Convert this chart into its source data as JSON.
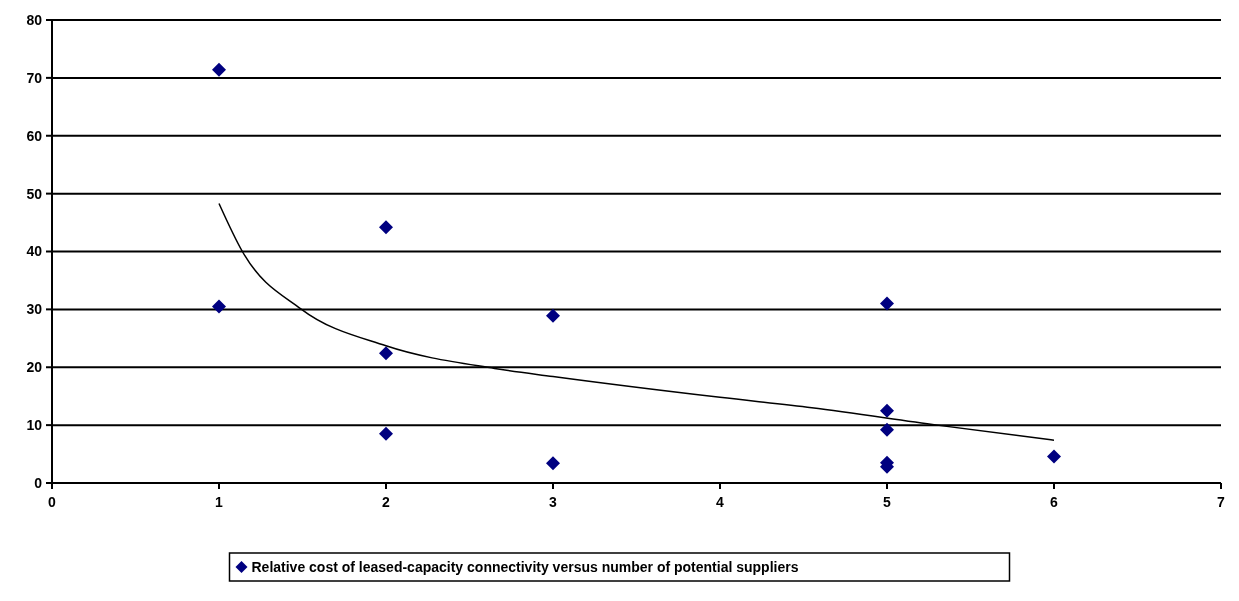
{
  "chart_data": {
    "type": "scatter",
    "xlim": [
      0,
      7
    ],
    "xticks": [
      0,
      1,
      2,
      3,
      4,
      5,
      6,
      7
    ],
    "ylim": [
      0,
      80
    ],
    "yticks": [
      0,
      10,
      20,
      30,
      40,
      50,
      60,
      70,
      80
    ],
    "grid": "y",
    "legend": "bottom",
    "marker": "diamond",
    "series": [
      {
        "name": "Relative cost of leased-capacity connectivity versus number of potential suppliers",
        "color": "#000080",
        "x": [
          1,
          1,
          2,
          2,
          2,
          3,
          3,
          5,
          5,
          5,
          5,
          5,
          6
        ],
        "values": [
          71.4,
          30.5,
          44.2,
          22.4,
          8.5,
          28.9,
          3.4,
          31.0,
          12.5,
          9.2,
          3.5,
          2.8,
          4.6
        ]
      },
      {
        "type": "line",
        "color": "#000000",
        "marker": "none",
        "x": [
          1,
          1.14,
          1.49,
          2,
          2.65,
          3,
          4,
          4.55,
          5.3,
          6
        ],
        "values": [
          48.3,
          40.0,
          30.1,
          23.7,
          19.8,
          18.4,
          14.8,
          13.0,
          10.0,
          7.4
        ]
      }
    ]
  }
}
